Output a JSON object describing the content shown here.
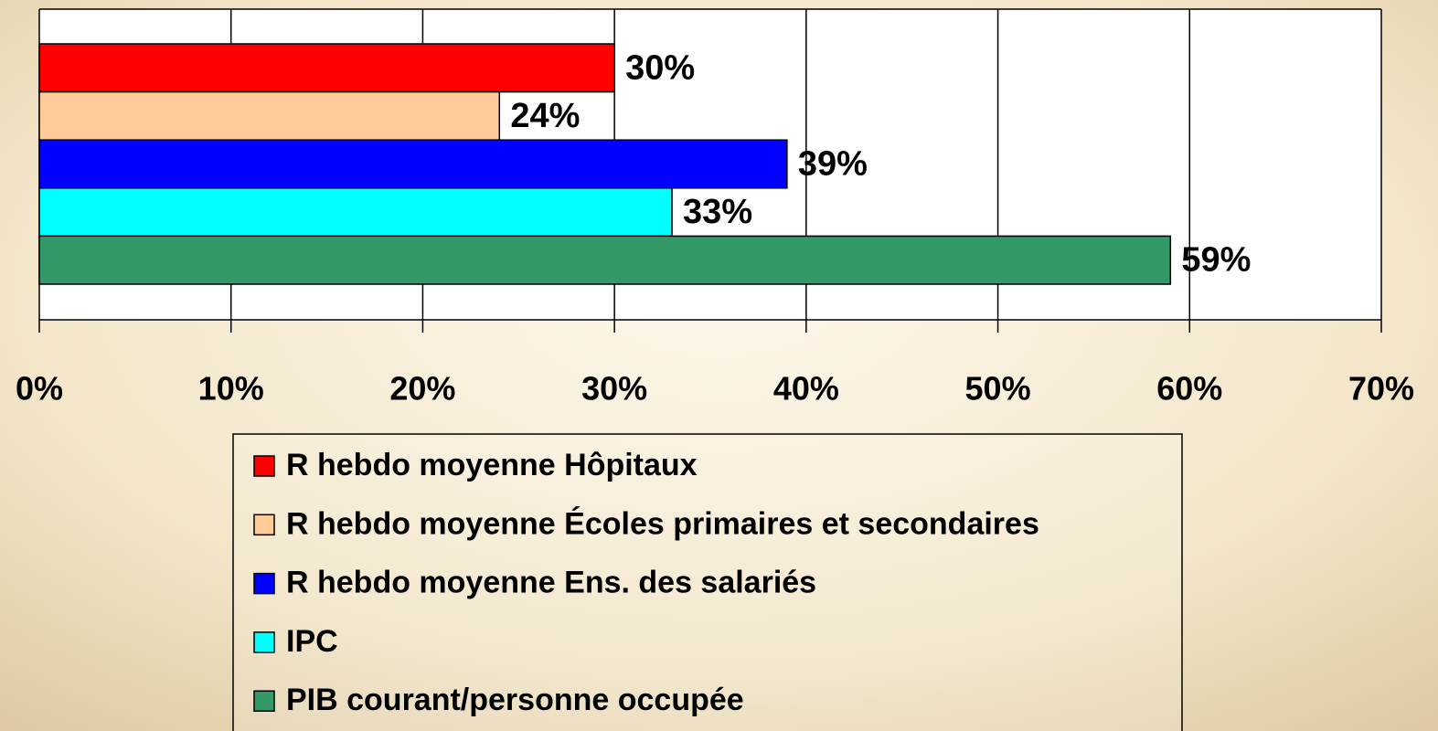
{
  "chart_data": {
    "type": "bar",
    "orientation": "horizontal",
    "categories": [
      null
    ],
    "series": [
      {
        "name": "R hebdo moyenne Hôpitaux",
        "color": "#ff0000",
        "values": [
          30
        ],
        "value_labels": [
          "30%"
        ]
      },
      {
        "name": "R hebdo moyenne Écoles primaires et secondaires",
        "color": "#ffcc99",
        "values": [
          24
        ],
        "value_labels": [
          "24%"
        ]
      },
      {
        "name": "R hebdo moyenne Ens. des salariés",
        "color": "#0000ff",
        "values": [
          39
        ],
        "value_labels": [
          "39%"
        ]
      },
      {
        "name": "IPC",
        "color": "#00ffff",
        "values": [
          33
        ],
        "value_labels": [
          "33%"
        ]
      },
      {
        "name": "PIB courant/personne occupée",
        "color": "#339966",
        "values": [
          59
        ],
        "value_labels": [
          "59%"
        ]
      }
    ],
    "xlim": [
      0,
      70
    ],
    "xticks": [
      {
        "value": 0,
        "label": "0%"
      },
      {
        "value": 10,
        "label": "10%"
      },
      {
        "value": 20,
        "label": "20%"
      },
      {
        "value": 30,
        "label": "30%"
      },
      {
        "value": 40,
        "label": "40%"
      },
      {
        "value": 50,
        "label": "50%"
      },
      {
        "value": 60,
        "label": "60%"
      },
      {
        "value": 70,
        "label": "70%"
      }
    ],
    "grid": true,
    "legend": "bottom"
  }
}
